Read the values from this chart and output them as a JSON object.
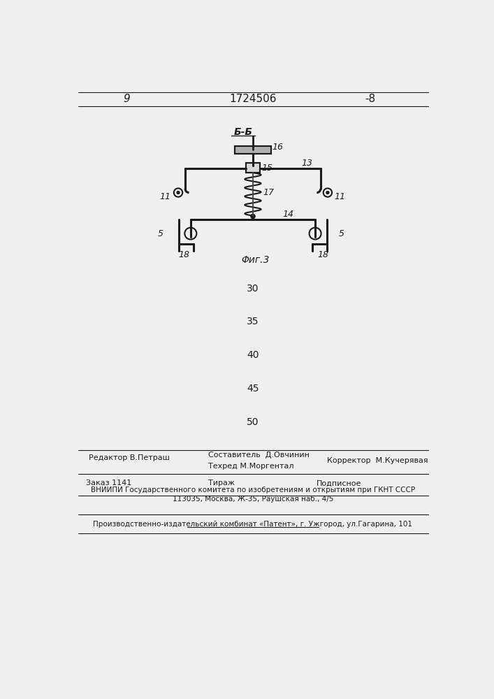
{
  "bg_color": "#f0f0f0",
  "line_color": "#1a1a1a",
  "page_number_left": "9",
  "page_number_center": "1724506",
  "page_number_right": "-8",
  "figure_label": "Φиг.3",
  "section_label": "Б-Б",
  "num_5_left": "5",
  "num_5_right": "5",
  "num_11_left": "11",
  "num_11_right": "11",
  "num_13": "13",
  "num_14": "14",
  "num_15": "15",
  "num_16": "16",
  "num_17": "17",
  "num_18_left": "18",
  "num_18_right": "18",
  "page_numbers_middle": [
    "30",
    "35",
    "40",
    "45",
    "50"
  ],
  "footer_line1_left": "Редактор В.Петраш",
  "footer_line1_center": "Составитель  Д.Овчинин",
  "footer_line2_center": "Техред М.Моргентал",
  "footer_line1_right": "Корректор  М.Кучерявая",
  "footer_order": "Заказ 1141",
  "footer_tirazh": "Тираж",
  "footer_podpisnoe": "Подписное",
  "footer_vnipi": "ВНИИПИ Государственного комитета по изобретениям и открытиям при ГКНТ СССР",
  "footer_address": "113035, Москва, Ж-35, Раушская наб., 4/5",
  "footer_patent": "Производственно-издательский комбинат «Патент», г. Ужгород, ул.Гагарина, 101"
}
